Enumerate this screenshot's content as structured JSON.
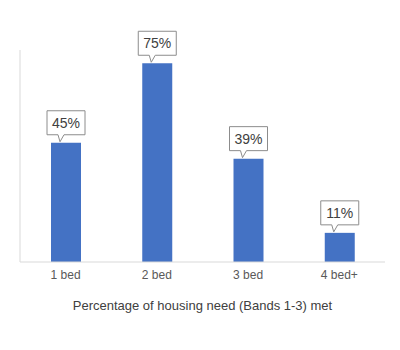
{
  "chart_data": {
    "type": "bar",
    "categories": [
      "1 bed",
      "2 bed",
      "3 bed",
      "4 bed+"
    ],
    "values": [
      45,
      75,
      39,
      11
    ],
    "value_labels": [
      "45%",
      "75%",
      "39%",
      "11%"
    ],
    "color": "#4472c4",
    "xlabel": "Percentage of housing need (Bands 1-3) met",
    "ylim": [
      0,
      80
    ],
    "data_labels": true,
    "tick_labels": "x",
    "grid": false
  }
}
